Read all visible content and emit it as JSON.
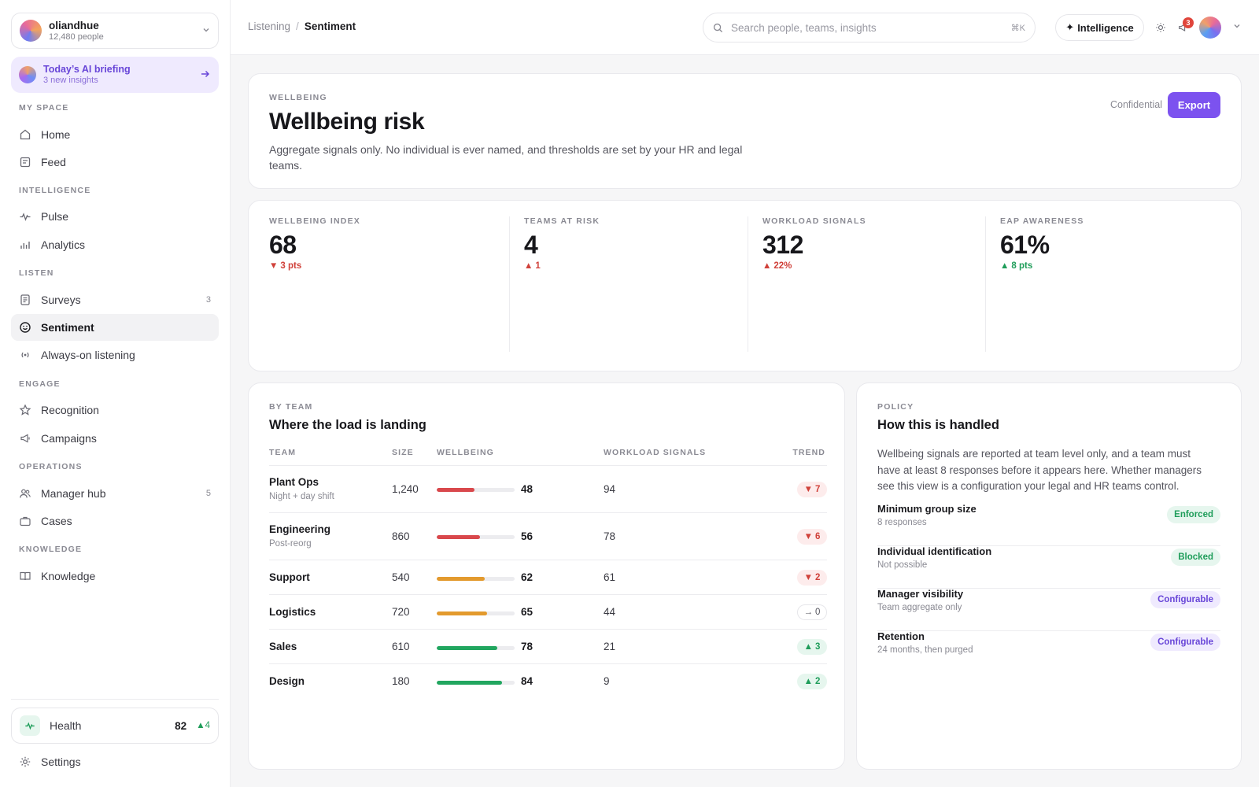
{
  "workspace": {
    "name": "oliandhue",
    "people": "12,480 people"
  },
  "briefing": {
    "title": "Today’s AI briefing",
    "subtitle": "3 new insights"
  },
  "nav": {
    "my_space": "MY SPACE",
    "home": "Home",
    "feed": "Feed",
    "intelligence": "INTELLIGENCE",
    "pulse": "Pulse",
    "analytics": "Analytics",
    "listen": "LISTEN",
    "surveys": "Surveys",
    "surveys_count": "3",
    "sentiment": "Sentiment",
    "always_on": "Always-on listening",
    "engage": "ENGAGE",
    "recognition": "Recognition",
    "campaigns": "Campaigns",
    "operations": "OPERATIONS",
    "manager_hub": "Manager hub",
    "manager_hub_count": "5",
    "cases": "Cases",
    "knowledge_section": "KNOWLEDGE",
    "knowledge": "Knowledge",
    "settings": "Settings"
  },
  "health": {
    "label": "Health",
    "score": "82",
    "delta": "4"
  },
  "topbar": {
    "crumb_parent": "Listening",
    "crumb_current": "Sentiment",
    "search_placeholder": "Search people, teams, insights",
    "search_shortcut": "⌘K",
    "intelligence_label": "Intelligence",
    "notifications_count": "3"
  },
  "hero": {
    "eyebrow": "WELLBEING",
    "title": "Wellbeing risk",
    "description": "Aggregate signals only. No individual is ever named, and thresholds are set by your HR and legal teams.",
    "confidential": "Confidential",
    "export": "Export"
  },
  "kpis": [
    {
      "label": "WELLBEING INDEX",
      "value": "68",
      "delta": "3 pts",
      "direction": "down"
    },
    {
      "label": "TEAMS AT RISK",
      "value": "4",
      "delta": "1",
      "direction": "up-bad"
    },
    {
      "label": "WORKLOAD SIGNALS",
      "value": "312",
      "delta": "22%",
      "direction": "up-bad"
    },
    {
      "label": "EAP AWARENESS",
      "value": "61%",
      "delta": "8 pts",
      "direction": "up"
    }
  ],
  "by_team": {
    "eyebrow": "BY TEAM",
    "title": "Where the load is landing",
    "headers": {
      "team": "TEAM",
      "size": "SIZE",
      "wellbeing": "WELLBEING",
      "workload": "WORKLOAD SIGNALS",
      "trend": "TREND"
    },
    "rows": [
      {
        "team": "Plant Ops",
        "sub": "Night + day shift",
        "size": "1,240",
        "wellbeing": 48,
        "workload": "94",
        "trend": "7",
        "trend_dir": "down",
        "bar_color": "#d9484c"
      },
      {
        "team": "Engineering",
        "sub": "Post-reorg",
        "size": "860",
        "wellbeing": 56,
        "workload": "78",
        "trend": "6",
        "trend_dir": "down",
        "bar_color": "#d9484c"
      },
      {
        "team": "Support",
        "sub": "",
        "size": "540",
        "wellbeing": 62,
        "workload": "61",
        "trend": "2",
        "trend_dir": "down",
        "bar_color": "#e39a2d"
      },
      {
        "team": "Logistics",
        "sub": "",
        "size": "720",
        "wellbeing": 65,
        "workload": "44",
        "trend": "0",
        "trend_dir": "flat",
        "bar_color": "#e39a2d"
      },
      {
        "team": "Sales",
        "sub": "",
        "size": "610",
        "wellbeing": 78,
        "workload": "21",
        "trend": "3",
        "trend_dir": "up",
        "bar_color": "#21a65f"
      },
      {
        "team": "Design",
        "sub": "",
        "size": "180",
        "wellbeing": 84,
        "workload": "9",
        "trend": "2",
        "trend_dir": "up",
        "bar_color": "#21a65f"
      }
    ]
  },
  "policy": {
    "eyebrow": "POLICY",
    "title": "How this is handled",
    "description": "Wellbeing signals are reported at team level only, and a team must have at least 8 responses before it appears here. Whether managers see this view is a configuration your legal and HR teams control.",
    "items": [
      {
        "name": "Minimum group size",
        "detail": "8 responses",
        "status": "Enforced",
        "tone": "green"
      },
      {
        "name": "Individual identification",
        "detail": "Not possible",
        "status": "Blocked",
        "tone": "green"
      },
      {
        "name": "Manager visibility",
        "detail": "Team aggregate only",
        "status": "Configurable",
        "tone": "purple"
      },
      {
        "name": "Retention",
        "detail": "24 months, then purged",
        "status": "Configurable",
        "tone": "purple"
      }
    ]
  },
  "colors": {
    "accent": "#7c52ef",
    "danger": "#d0413a",
    "success": "#1f9d5a",
    "warning": "#e39a2d"
  }
}
